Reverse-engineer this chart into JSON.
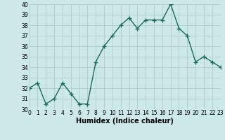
{
  "x": [
    0,
    1,
    2,
    3,
    4,
    5,
    6,
    7,
    8,
    9,
    10,
    11,
    12,
    13,
    14,
    15,
    16,
    17,
    18,
    19,
    20,
    21,
    22,
    23
  ],
  "y": [
    32,
    32.5,
    30.5,
    31,
    32.5,
    31.5,
    30.5,
    30.5,
    34.5,
    36,
    37,
    38,
    38.7,
    37.7,
    38.5,
    38.5,
    38.5,
    40,
    37.7,
    37,
    34.5,
    35,
    34.5,
    34
  ],
  "xlabel": "Humidex (Indice chaleur)",
  "ylim": [
    30,
    40
  ],
  "xlim": [
    0,
    23
  ],
  "yticks": [
    30,
    31,
    32,
    33,
    34,
    35,
    36,
    37,
    38,
    39,
    40
  ],
  "xticks": [
    0,
    1,
    2,
    3,
    4,
    5,
    6,
    7,
    8,
    9,
    10,
    11,
    12,
    13,
    14,
    15,
    16,
    17,
    18,
    19,
    20,
    21,
    22,
    23
  ],
  "line_color": "#1a6b5a",
  "bg_color": "#cce8e8",
  "grid_color": "#b0cccc",
  "marker": "+",
  "marker_size": 4,
  "marker_edge_width": 1.0,
  "line_width": 1.0,
  "tick_fontsize": 5.5,
  "xlabel_fontsize": 7
}
